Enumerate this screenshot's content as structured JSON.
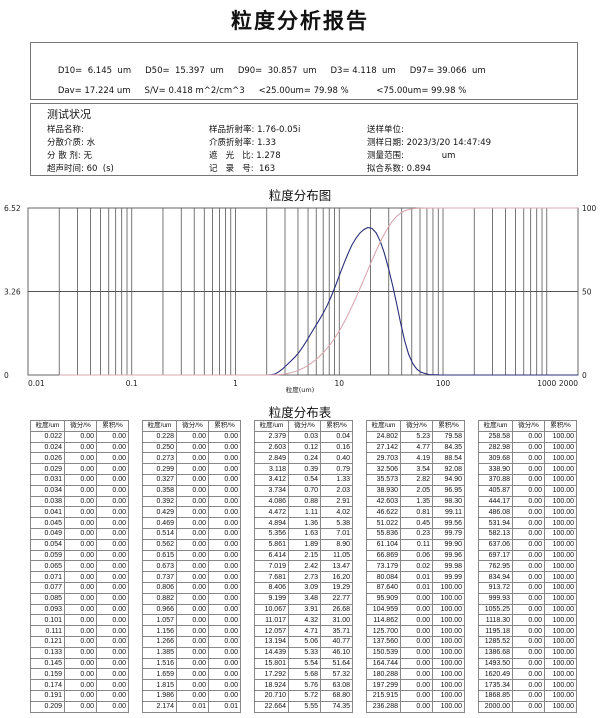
{
  "title": "粒度分析报告",
  "summary": {
    "line1": [
      "D10=  6.145  um",
      "D50=  15.397  um",
      "D90=  30.857  um",
      "D3= 4.118  um",
      "D97= 39.066  um"
    ],
    "line2": [
      "Dav= 17.224 um",
      "S/V= 0.418 m^2/cm^3",
      "<25.00um= 79.98 %",
      "     <75.00um= 99.98 %"
    ]
  },
  "conditions": {
    "heading": "测试状况",
    "fields": [
      [
        "样品名称: ",
        "样品折射率: 1.76-0.05i",
        "送样单位: "
      ],
      [
        "分散介质: 水",
        "介质折射率: 1.33",
        "测样日期: 2023/3/20 14:47:49"
      ],
      [
        "分 散 剂: 无",
        "遮   光   比: 1.278",
        "测量范围:              um"
      ],
      [
        "超声时间: 60  (s)",
        "记   录   号:  163",
        "拟合系数: 0.894"
      ]
    ]
  },
  "chart_title": "粒度分布图",
  "table_title": "粒度分布表",
  "chart_data": {
    "type": "line",
    "xlabel": "粒度(um)",
    "x_scale": "log",
    "xlim": [
      0.01,
      2000
    ],
    "x_ticks": [
      "0.01",
      "0.1",
      "1",
      "10",
      "100",
      "1000",
      "2000"
    ],
    "y_left_ticks": [
      "0",
      "3.26",
      "6.52"
    ],
    "y_left_lim": [
      0,
      6.52
    ],
    "y_right_ticks": [
      "0",
      "50",
      "100"
    ],
    "y_right_lim": [
      0,
      100
    ],
    "grid": true,
    "x": [
      2.174,
      2.379,
      2.603,
      2.849,
      3.118,
      3.412,
      3.734,
      4.086,
      4.472,
      4.894,
      5.356,
      5.861,
      6.414,
      7.019,
      7.681,
      8.406,
      9.199,
      10.067,
      11.017,
      12.057,
      13.194,
      14.439,
      15.801,
      17.292,
      18.924,
      20.71,
      22.664,
      24.802,
      27.142,
      29.703,
      32.506,
      35.573,
      38.93,
      42.603,
      46.622,
      51.022,
      55.836,
      61.104,
      66.869,
      73.179,
      80.084,
      87.64,
      95.909
    ],
    "series": [
      {
        "axis": "left",
        "color": "#2b2f7a",
        "values": [
          0.01,
          0.03,
          0.12,
          0.24,
          0.39,
          0.54,
          0.7,
          0.88,
          1.11,
          1.36,
          1.63,
          1.89,
          2.15,
          2.42,
          2.73,
          3.09,
          3.48,
          3.91,
          4.32,
          4.71,
          5.06,
          5.33,
          5.54,
          5.68,
          5.76,
          5.72,
          5.55,
          5.23,
          4.77,
          4.19,
          3.54,
          2.82,
          2.05,
          1.35,
          0.81,
          0.45,
          0.23,
          0.11,
          0.06,
          0.02,
          0.01,
          0.01,
          0.0
        ]
      },
      {
        "axis": "right",
        "color": "#d8a8b0",
        "values": [
          0.01,
          0.04,
          0.16,
          0.4,
          0.79,
          1.33,
          2.03,
          2.91,
          4.02,
          5.38,
          7.01,
          8.9,
          11.05,
          13.47,
          16.2,
          19.29,
          22.77,
          26.68,
          31.0,
          35.71,
          40.77,
          46.1,
          51.64,
          57.32,
          63.08,
          68.8,
          74.35,
          79.58,
          84.35,
          88.54,
          92.08,
          94.9,
          96.95,
          98.3,
          99.11,
          99.56,
          99.79,
          99.9,
          99.96,
          99.98,
          99.99,
          100.0,
          100.0
        ]
      }
    ]
  },
  "table_headers": [
    "粒度/um",
    "微分/%",
    "累积/%"
  ],
  "tables": [
    [
      [
        "0.022",
        "0.00",
        "0.00"
      ],
      [
        "0.024",
        "0.00",
        "0.00"
      ],
      [
        "0.026",
        "0.00",
        "0.00"
      ],
      [
        "0.029",
        "0.00",
        "0.00"
      ],
      [
        "0.031",
        "0.00",
        "0.00"
      ],
      [
        "0.034",
        "0.00",
        "0.00"
      ],
      [
        "0.038",
        "0.00",
        "0.00"
      ],
      [
        "0.041",
        "0.00",
        "0.00"
      ],
      [
        "0.045",
        "0.00",
        "0.00"
      ],
      [
        "0.049",
        "0.00",
        "0.00"
      ],
      [
        "0.054",
        "0.00",
        "0.00"
      ],
      [
        "0.059",
        "0.00",
        "0.00"
      ],
      [
        "0.065",
        "0.00",
        "0.00"
      ],
      [
        "0.071",
        "0.00",
        "0.00"
      ],
      [
        "0.077",
        "0.00",
        "0.00"
      ],
      [
        "0.085",
        "0.00",
        "0.00"
      ],
      [
        "0.093",
        "0.00",
        "0.00"
      ],
      [
        "0.101",
        "0.00",
        "0.00"
      ],
      [
        "0.111",
        "0.00",
        "0.00"
      ],
      [
        "0.121",
        "0.00",
        "0.00"
      ],
      [
        "0.133",
        "0.00",
        "0.00"
      ],
      [
        "0.145",
        "0.00",
        "0.00"
      ],
      [
        "0.159",
        "0.00",
        "0.00"
      ],
      [
        "0.174",
        "0.00",
        "0.00"
      ],
      [
        "0.191",
        "0.00",
        "0.00"
      ],
      [
        "0.209",
        "0.00",
        "0.00"
      ]
    ],
    [
      [
        "0.228",
        "0.00",
        "0.00"
      ],
      [
        "0.250",
        "0.00",
        "0.00"
      ],
      [
        "0.273",
        "0.00",
        "0.00"
      ],
      [
        "0.299",
        "0.00",
        "0.00"
      ],
      [
        "0.327",
        "0.00",
        "0.00"
      ],
      [
        "0.358",
        "0.00",
        "0.00"
      ],
      [
        "0.392",
        "0.00",
        "0.00"
      ],
      [
        "0.429",
        "0.00",
        "0.00"
      ],
      [
        "0.469",
        "0.00",
        "0.00"
      ],
      [
        "0.514",
        "0.00",
        "0.00"
      ],
      [
        "0.562",
        "0.00",
        "0.00"
      ],
      [
        "0.615",
        "0.00",
        "0.00"
      ],
      [
        "0.673",
        "0.00",
        "0.00"
      ],
      [
        "0.737",
        "0.00",
        "0.00"
      ],
      [
        "0.806",
        "0.00",
        "0.00"
      ],
      [
        "0.882",
        "0.00",
        "0.00"
      ],
      [
        "0.966",
        "0.00",
        "0.00"
      ],
      [
        "1.057",
        "0.00",
        "0.00"
      ],
      [
        "1.156",
        "0.00",
        "0.00"
      ],
      [
        "1.266",
        "0.00",
        "0.00"
      ],
      [
        "1.385",
        "0.00",
        "0.00"
      ],
      [
        "1.516",
        "0.00",
        "0.00"
      ],
      [
        "1.659",
        "0.00",
        "0.00"
      ],
      [
        "1.815",
        "0.00",
        "0.00"
      ],
      [
        "1.986",
        "0.00",
        "0.00"
      ],
      [
        "2.174",
        "0.01",
        "0.01"
      ]
    ],
    [
      [
        "2.379",
        "0.03",
        "0.04"
      ],
      [
        "2.603",
        "0.12",
        "0.16"
      ],
      [
        "2.849",
        "0.24",
        "0.40"
      ],
      [
        "3.118",
        "0.39",
        "0.79"
      ],
      [
        "3.412",
        "0.54",
        "1.33"
      ],
      [
        "3.734",
        "0.70",
        "2.03"
      ],
      [
        "4.086",
        "0.88",
        "2.91"
      ],
      [
        "4.472",
        "1.11",
        "4.02"
      ],
      [
        "4.894",
        "1.36",
        "5.38"
      ],
      [
        "5.356",
        "1.63",
        "7.01"
      ],
      [
        "5.861",
        "1.89",
        "8.90"
      ],
      [
        "6.414",
        "2.15",
        "11.05"
      ],
      [
        "7.019",
        "2.42",
        "13.47"
      ],
      [
        "7.681",
        "2.73",
        "16.20"
      ],
      [
        "8.406",
        "3.09",
        "19.29"
      ],
      [
        "9.199",
        "3.48",
        "22.77"
      ],
      [
        "10.067",
        "3.91",
        "26.68"
      ],
      [
        "11.017",
        "4.32",
        "31.00"
      ],
      [
        "12.057",
        "4.71",
        "35.71"
      ],
      [
        "13.194",
        "5.06",
        "40.77"
      ],
      [
        "14.439",
        "5.33",
        "46.10"
      ],
      [
        "15.801",
        "5.54",
        "51.64"
      ],
      [
        "17.292",
        "5.68",
        "57.32"
      ],
      [
        "18.924",
        "5.76",
        "63.08"
      ],
      [
        "20.710",
        "5.72",
        "68.80"
      ],
      [
        "22.664",
        "5.55",
        "74.35"
      ]
    ],
    [
      [
        "24.802",
        "5.23",
        "79.58"
      ],
      [
        "27.142",
        "4.77",
        "84.35"
      ],
      [
        "29.703",
        "4.19",
        "88.54"
      ],
      [
        "32.506",
        "3.54",
        "92.08"
      ],
      [
        "35.573",
        "2.82",
        "94.90"
      ],
      [
        "38.930",
        "2.05",
        "96.95"
      ],
      [
        "42.603",
        "1.35",
        "98.30"
      ],
      [
        "46.622",
        "0.81",
        "99.11"
      ],
      [
        "51.022",
        "0.45",
        "99.56"
      ],
      [
        "55.836",
        "0.23",
        "99.79"
      ],
      [
        "61.104",
        "0.11",
        "99.90"
      ],
      [
        "66.869",
        "0.06",
        "99.96"
      ],
      [
        "73.179",
        "0.02",
        "99.98"
      ],
      [
        "80.084",
        "0.01",
        "99.99"
      ],
      [
        "87.640",
        "0.01",
        "100.00"
      ],
      [
        "95.909",
        "0.00",
        "100.00"
      ],
      [
        "104.959",
        "0.00",
        "100.00"
      ],
      [
        "114.862",
        "0.00",
        "100.00"
      ],
      [
        "125.700",
        "0.00",
        "100.00"
      ],
      [
        "137.560",
        "0.00",
        "100.00"
      ],
      [
        "150.539",
        "0.00",
        "100.00"
      ],
      [
        "164.744",
        "0.00",
        "100.00"
      ],
      [
        "180.288",
        "0.00",
        "100.00"
      ],
      [
        "197.299",
        "0.00",
        "100.00"
      ],
      [
        "215.915",
        "0.00",
        "100.00"
      ],
      [
        "236.288",
        "0.00",
        "100.00"
      ]
    ],
    [
      [
        "258.58",
        "0.00",
        "100.00"
      ],
      [
        "282.98",
        "0.00",
        "100.00"
      ],
      [
        "309.68",
        "0.00",
        "100.00"
      ],
      [
        "338.90",
        "0.00",
        "100.00"
      ],
      [
        "370.88",
        "0.00",
        "100.00"
      ],
      [
        "405.87",
        "0.00",
        "100.00"
      ],
      [
        "444.17",
        "0.00",
        "100.00"
      ],
      [
        "486.08",
        "0.00",
        "100.00"
      ],
      [
        "531.94",
        "0.00",
        "100.00"
      ],
      [
        "582.13",
        "0.00",
        "100.00"
      ],
      [
        "637.06",
        "0.00",
        "100.00"
      ],
      [
        "697.17",
        "0.00",
        "100.00"
      ],
      [
        "762.95",
        "0.00",
        "100.00"
      ],
      [
        "834.94",
        "0.00",
        "100.00"
      ],
      [
        "913.72",
        "0.00",
        "100.00"
      ],
      [
        "999.93",
        "0.00",
        "100.00"
      ],
      [
        "1055.25",
        "0.00",
        "100.00"
      ],
      [
        "1118.30",
        "0.00",
        "100.00"
      ],
      [
        "1195.18",
        "0.00",
        "100.00"
      ],
      [
        "1285.52",
        "0.00",
        "100.00"
      ],
      [
        "1386.68",
        "0.00",
        "100.00"
      ],
      [
        "1493.50",
        "0.00",
        "100.00"
      ],
      [
        "1620.49",
        "0.00",
        "100.00"
      ],
      [
        "1735.34",
        "0.00",
        "100.00"
      ],
      [
        "1868.85",
        "0.00",
        "100.00"
      ],
      [
        "2000.00",
        "0.00",
        "100.00"
      ]
    ]
  ]
}
